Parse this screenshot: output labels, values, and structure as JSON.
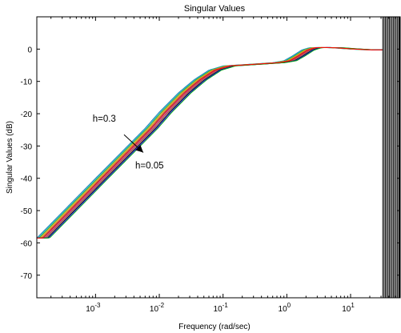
{
  "chart_data": {
    "type": "line",
    "title": "Singular Values",
    "xlabel": "Frequency (rad/sec)",
    "ylabel": "Singular Values (dB)",
    "xscale": "log",
    "xlim": [
      0.00012,
      60
    ],
    "ylim": [
      -77,
      10
    ],
    "grid": false,
    "x_ticks": [
      {
        "value": 0.001,
        "base": "10",
        "exp": "-3"
      },
      {
        "value": 0.01,
        "base": "10",
        "exp": "-2"
      },
      {
        "value": 0.1,
        "base": "10",
        "exp": "-1"
      },
      {
        "value": 1,
        "base": "10",
        "exp": "0"
      },
      {
        "value": 10,
        "base": "10",
        "exp": "1"
      }
    ],
    "y_ticks": [
      0,
      -10,
      -20,
      -30,
      -40,
      -50,
      -60,
      -70
    ],
    "series_colors": [
      "#1f77b4",
      "#17becf",
      "#2ca02c",
      "#bcbd22",
      "#ff7f0e",
      "#8c564b",
      "#e377c2",
      "#9467bd",
      "#d62728",
      "#7f7f7f",
      "#000000",
      "#1a1aff",
      "#00aa00"
    ],
    "highlight_color": "#ff0000",
    "shift_range": [
      0,
      0.2
    ],
    "series_count": 13,
    "vertical_lines": {
      "x_start": 32,
      "x_end": 60,
      "count": 14
    },
    "curve_profile": {
      "x": [
        0.00012,
        0.0003,
        0.001,
        0.003,
        0.006,
        0.01,
        0.02,
        0.035,
        0.06,
        0.1,
        0.3,
        0.6,
        0.9,
        1.2,
        1.7,
        2.2,
        3,
        5,
        8,
        15,
        60
      ],
      "y": [
        -58.5,
        -50.5,
        -40,
        -30.5,
        -24.5,
        -19.5,
        -13.5,
        -9.5,
        -6.5,
        -5.2,
        -4.6,
        -4.2,
        -3.6,
        -2.2,
        -0.3,
        0.4,
        0.5,
        0.4,
        0.1,
        -0.2,
        -0.3
      ]
    },
    "annotations": [
      {
        "text": "h=0.3",
        "x": 0.0009,
        "y": -21.5
      },
      {
        "text": "h=0.05",
        "x": 0.0042,
        "y": -36
      }
    ],
    "arrow": {
      "from": [
        0.0028,
        -26.5
      ],
      "to": [
        0.0056,
        -32
      ]
    }
  }
}
